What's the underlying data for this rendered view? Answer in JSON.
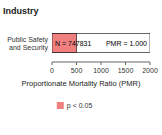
{
  "chart_data": {
    "type": "bar",
    "orientation": "horizontal",
    "ylabel": "Industry",
    "categories": [
      "Public Safety\nand Security"
    ],
    "series": [
      {
        "values": [
          2000
        ],
        "color": "#FFFFFF"
      },
      {
        "name": "p < 0.05",
        "values": [
          500
        ],
        "color": "#F08080"
      }
    ],
    "annotations": [
      "N = 747831",
      "PMR = 1.000"
    ],
    "xlabel": "Proportionate Mortality Ratio (PMR)",
    "xlim": [
      0,
      2000
    ],
    "xticks": [
      0,
      500,
      1000,
      1500,
      2000
    ],
    "legend": "bottom"
  }
}
